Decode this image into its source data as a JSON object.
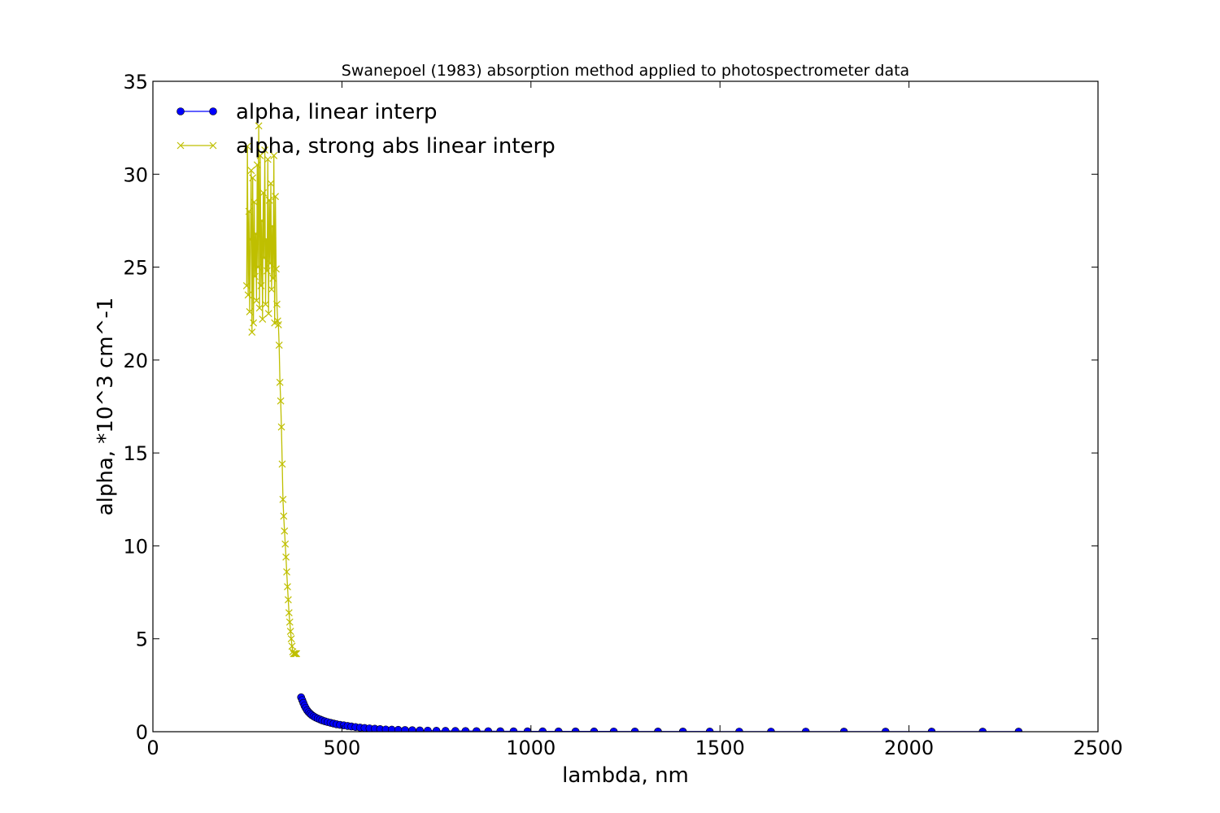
{
  "chart_data": {
    "type": "line",
    "title": "Swanepoel (1983) absorption method applied to photospectrometer data",
    "xlabel": "lambda, nm",
    "ylabel": "alpha, *10^3 cm^-1",
    "xlim": [
      0,
      2500
    ],
    "ylim": [
      0,
      35
    ],
    "xticks": [
      "0",
      "500",
      "1000",
      "1500",
      "2000",
      "2500"
    ],
    "yticks": [
      "0",
      "5",
      "10",
      "15",
      "20",
      "25",
      "30",
      "35"
    ],
    "grid": false,
    "legend": "upper-left",
    "series": [
      {
        "name": "alpha, linear interp",
        "color": "#0000ff",
        "marker": "circle",
        "x": [
          392,
          395,
          398,
          401,
          404,
          408,
          412,
          416,
          420,
          425,
          430,
          436,
          442,
          448,
          455,
          462,
          470,
          478,
          486,
          495,
          505,
          515,
          525,
          536,
          548,
          560,
          573,
          587,
          601,
          616,
          632,
          649,
          667,
          686,
          706,
          727,
          750,
          774,
          800,
          827,
          856,
          887,
          919,
          954,
          991,
          1031,
          1073,
          1118,
          1167,
          1219,
          1275,
          1336,
          1402,
          1473,
          1551,
          1635,
          1727,
          1828,
          1938,
          2060,
          2195,
          2290
        ],
        "y": [
          1.85,
          1.7,
          1.55,
          1.4,
          1.28,
          1.15,
          1.05,
          0.97,
          0.9,
          0.83,
          0.77,
          0.71,
          0.66,
          0.61,
          0.56,
          0.52,
          0.48,
          0.44,
          0.4,
          0.37,
          0.34,
          0.31,
          0.28,
          0.25,
          0.22,
          0.2,
          0.18,
          0.16,
          0.14,
          0.12,
          0.11,
          0.1,
          0.09,
          0.08,
          0.07,
          0.06,
          0.05,
          0.045,
          0.04,
          0.035,
          0.03,
          0.027,
          0.024,
          0.021,
          0.019,
          0.017,
          0.015,
          0.013,
          0.012,
          0.011,
          0.01,
          0.009,
          0.008,
          0.007,
          0.006,
          0.005,
          0.005,
          0.004,
          0.004,
          0.003,
          0.003,
          0.003
        ]
      },
      {
        "name": "alpha, strong abs linear interp",
        "color": "#bfbf00",
        "marker": "x",
        "x": [
          248,
          250,
          252,
          254,
          256,
          258,
          260,
          262,
          264,
          266,
          268,
          270,
          272,
          274,
          276,
          278,
          280,
          282,
          284,
          286,
          288,
          290,
          292,
          294,
          296,
          298,
          300,
          302,
          304,
          306,
          308,
          310,
          312,
          314,
          316,
          318,
          320,
          322,
          324,
          326,
          328,
          330,
          332,
          334,
          336,
          338,
          340,
          342,
          344,
          346,
          348,
          350,
          352,
          354,
          356,
          358,
          360,
          362,
          364,
          366,
          368,
          370,
          372,
          374,
          376,
          378,
          380
        ],
        "y": [
          24.0,
          31.5,
          23.5,
          28.0,
          22.6,
          26.5,
          30.2,
          21.5,
          29.8,
          22.0,
          28.5,
          24.5,
          26.8,
          23.2,
          30.5,
          25.0,
          32.6,
          22.8,
          31.0,
          24.0,
          27.5,
          22.2,
          29.0,
          25.5,
          31.3,
          23.0,
          26.5,
          24.8,
          30.8,
          22.5,
          28.6,
          25.2,
          29.5,
          23.8,
          27.2,
          24.4,
          31.0,
          22.0,
          28.8,
          24.9,
          23.0,
          22.1,
          21.9,
          20.8,
          18.8,
          17.8,
          16.4,
          14.4,
          12.5,
          11.6,
          10.8,
          10.1,
          9.4,
          8.6,
          7.8,
          7.1,
          6.4,
          5.9,
          5.4,
          5.0,
          4.6,
          4.3,
          4.2,
          4.2,
          4.2,
          4.2,
          4.2
        ]
      }
    ]
  }
}
